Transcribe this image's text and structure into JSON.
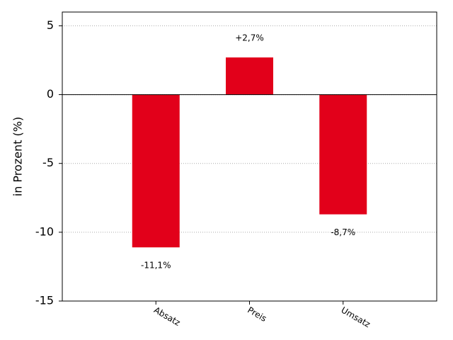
{
  "chart_data": {
    "type": "bar",
    "ylabel": "in Prozent (%)",
    "categories": [
      "Absatz",
      "Preis",
      "Umsatz"
    ],
    "values": [
      -11.1,
      2.7,
      -8.7
    ],
    "value_labels": [
      "-11,1%",
      "+2,7%",
      "-8,7%"
    ],
    "color": "#e2001a",
    "ylim": [
      -15,
      6
    ],
    "yticks": [
      5,
      0,
      -5,
      -10,
      -15
    ],
    "grid": true
  }
}
